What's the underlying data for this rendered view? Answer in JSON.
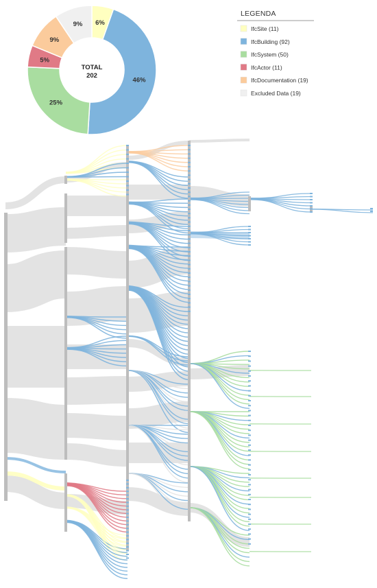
{
  "chart_data": [
    {
      "type": "pie",
      "variant": "donut",
      "center_label": "TOTAL",
      "center_value": "202",
      "legend_title": "LEGENDA",
      "legend_placement": "top-right",
      "slices": [
        {
          "label": "IfcSite (11)",
          "value": 11,
          "percent_label": "6%",
          "color": "#FFFFC0"
        },
        {
          "label": "IfcBuilding (92)",
          "value": 92,
          "percent_label": "46%",
          "color": "#7EB4DD"
        },
        {
          "label": "IfcSystem (50)",
          "value": 50,
          "percent_label": "25%",
          "color": "#A9DDA0"
        },
        {
          "label": "IfcActor (11)",
          "value": 11,
          "percent_label": "5%",
          "color": "#E07A86"
        },
        {
          "label": "IfcDocumentation (19)",
          "value": 19,
          "percent_label": "9%",
          "color": "#FBCB9C"
        },
        {
          "label": "Excluded Data (19)",
          "value": 19,
          "percent_label": "9%",
          "color": "#F0F0F0"
        }
      ]
    },
    {
      "type": "sankey",
      "levels": 6,
      "colors": {
        "node": "#BDBDBD",
        "link_default": "#E3E3E3"
      }
    }
  ]
}
